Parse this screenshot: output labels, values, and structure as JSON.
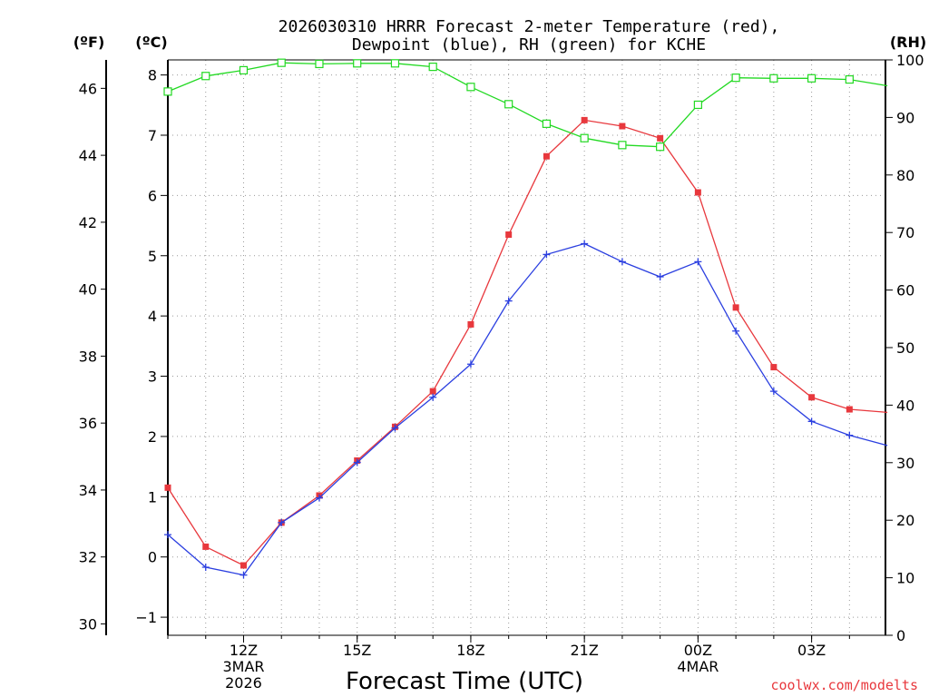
{
  "chart_data": {
    "type": "line",
    "title_line1": "2026030310 HRRR Forecast 2-meter Temperature (red),",
    "title_line2": "Dewpoint (blue), RH (green) for KCHE",
    "xlabel": "Forecast Time (UTC)",
    "credit": "coolwx.com/modelts",
    "units": {
      "fahrenheit": "(ºF)",
      "celsius": "(ºC)",
      "rh": "(RH)"
    },
    "x_hours": [
      9,
      10,
      11,
      12,
      13,
      14,
      15,
      16,
      17,
      18,
      19,
      20,
      21,
      22,
      23,
      24,
      25,
      26,
      27,
      28
    ],
    "x_range": [
      9,
      27.95
    ],
    "x_ticks": [
      {
        "hour": 11,
        "labels": [
          "12Z",
          "3MAR",
          "2026"
        ]
      },
      {
        "hour": 14,
        "labels": [
          "15Z"
        ]
      },
      {
        "hour": 17,
        "labels": [
          "18Z"
        ]
      },
      {
        "hour": 20,
        "labels": [
          "21Z"
        ]
      },
      {
        "hour": 23,
        "labels": [
          "00Z",
          "4MAR"
        ]
      },
      {
        "hour": 26,
        "labels": [
          "03Z"
        ]
      }
    ],
    "y_left_c": {
      "range": [
        -1.3,
        8.25
      ],
      "ticks": [
        -1,
        0,
        1,
        2,
        3,
        4,
        5,
        6,
        7,
        8
      ],
      "labels": [
        "−1",
        "0",
        "1",
        "2",
        "3",
        "4",
        "5",
        "6",
        "7",
        "8"
      ]
    },
    "y_left_f": {
      "ticks": [
        30,
        32,
        34,
        36,
        38,
        40,
        42,
        44,
        46
      ],
      "labels": [
        "30",
        "32",
        "34",
        "36",
        "38",
        "40",
        "42",
        "44",
        "46"
      ]
    },
    "y_right_rh": {
      "range": [
        0,
        100
      ],
      "ticks": [
        0,
        10,
        20,
        30,
        40,
        50,
        60,
        70,
        80,
        90,
        100
      ],
      "labels": [
        "0",
        "10",
        "20",
        "30",
        "40",
        "50",
        "60",
        "70",
        "80",
        "90",
        "100"
      ]
    },
    "series": [
      {
        "name": "Temperature",
        "unit": "C",
        "color": "#e8383d",
        "marker": "filled-square",
        "values": [
          1.15,
          0.17,
          -0.14,
          0.57,
          1.02,
          1.6,
          2.16,
          2.75,
          3.86,
          5.35,
          6.65,
          7.25,
          7.15,
          6.95,
          6.05,
          4.14,
          3.15,
          2.65,
          2.45,
          2.4
        ]
      },
      {
        "name": "Dewpoint",
        "unit": "C",
        "color": "#2b3fe0",
        "marker": "plus",
        "values": [
          0.37,
          -0.17,
          -0.3,
          0.57,
          0.98,
          1.57,
          2.14,
          2.65,
          3.2,
          4.25,
          5.02,
          5.2,
          4.9,
          4.65,
          4.9,
          3.75,
          2.75,
          2.25,
          2.02,
          1.85
        ]
      },
      {
        "name": "RH",
        "unit": "%",
        "color": "#22d922",
        "marker": "open-square",
        "values": [
          94.5,
          97.2,
          98.2,
          99.5,
          99.3,
          99.4,
          99.4,
          98.8,
          95.3,
          92.3,
          88.9,
          86.4,
          85.2,
          84.9,
          92.2,
          96.9,
          96.8,
          96.8,
          96.6,
          95.5
        ]
      }
    ]
  }
}
